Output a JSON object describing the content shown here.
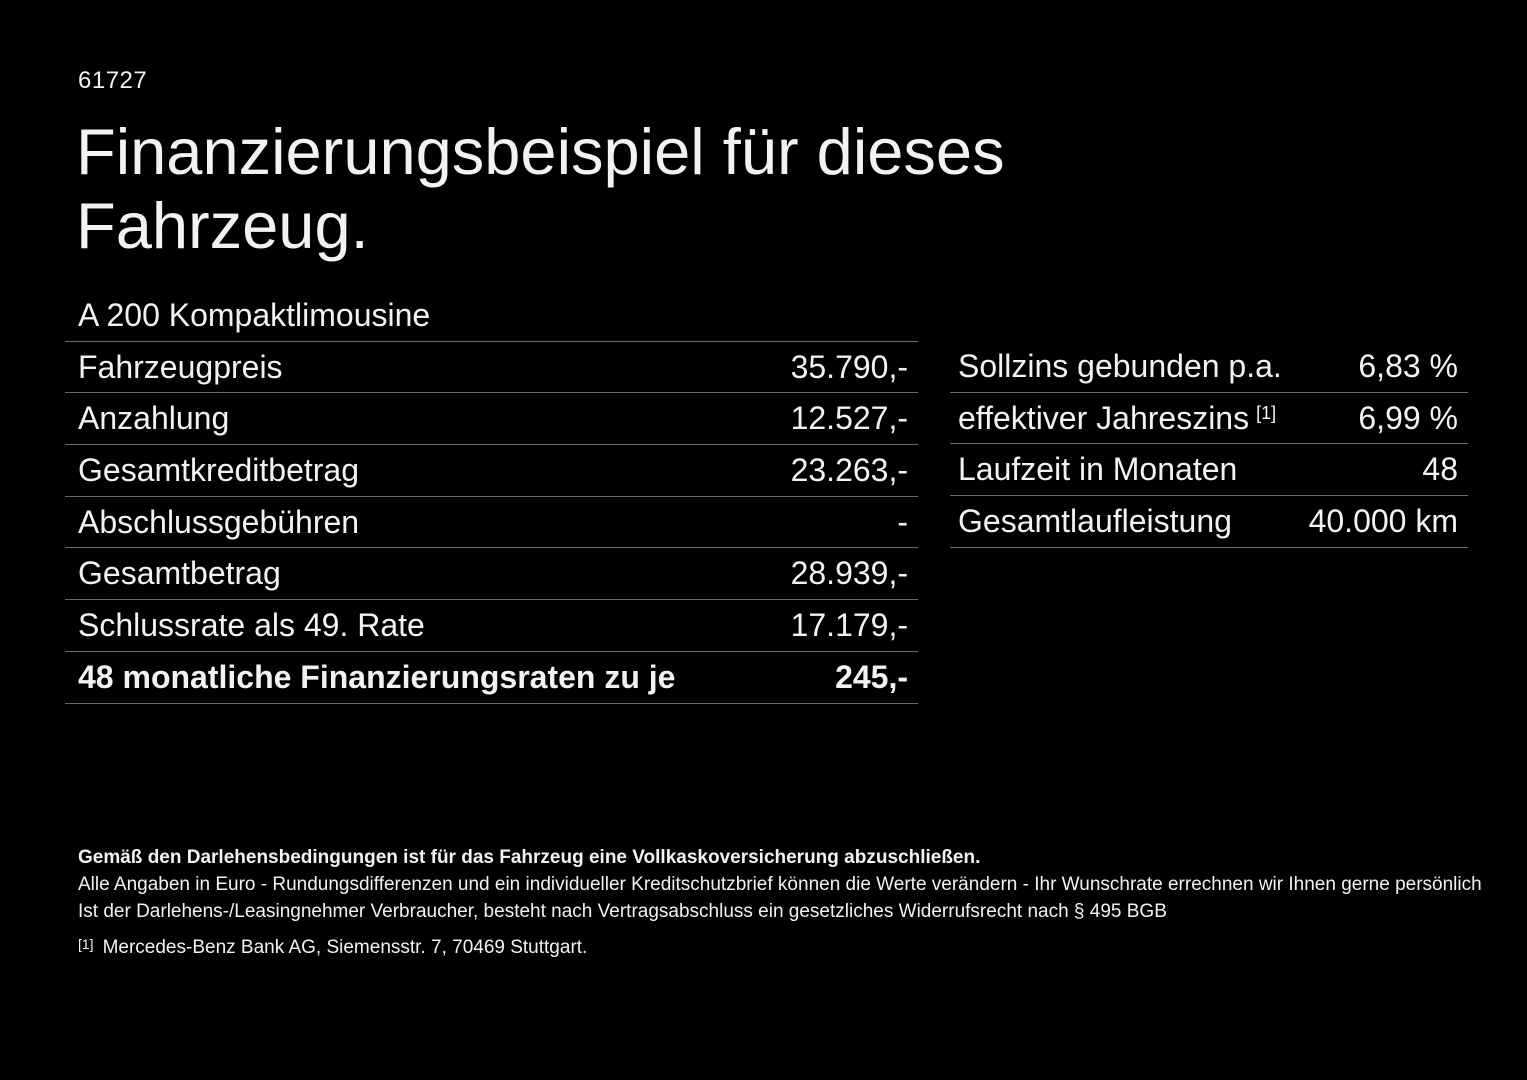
{
  "colors": {
    "background": "#000000",
    "text": "#f2f2f2",
    "divider": "#6b6b6b"
  },
  "header": {
    "document_number": "61727",
    "title_line1": "Finanzierungsbeispiel für dieses",
    "title_line2": "Fahrzeug."
  },
  "vehicle": {
    "model": "A 200 Kompaktlimousine"
  },
  "finance_table": {
    "rows": [
      {
        "label": "Fahrzeugpreis",
        "value": "35.790,-"
      },
      {
        "label": "Anzahlung",
        "value": "12.527,-"
      },
      {
        "label": "Gesamtkreditbetrag",
        "value": "23.263,-"
      },
      {
        "label": "Abschlussgebühren",
        "value": "-"
      },
      {
        "label": "Gesamtbetrag",
        "value": "28.939,-"
      },
      {
        "label": "Schlussrate als 49. Rate",
        "value": "17.179,-"
      },
      {
        "label": "48 monatliche Finanzierungsraten zu je",
        "value": "245,-"
      }
    ]
  },
  "conditions_table": {
    "rows": [
      {
        "label": "Sollzins gebunden p.a.",
        "value": "6,83 %"
      },
      {
        "label": "effektiver Jahreszins",
        "label_sup": "[1]",
        "value": "6,99 %"
      },
      {
        "label": "Laufzeit in Monaten",
        "value": "48"
      },
      {
        "label": "Gesamtlaufleistung",
        "value": "40.000 km"
      }
    ]
  },
  "footer": {
    "line1": "Gemäß den Darlehensbedingungen ist für das Fahrzeug eine Vollkaskoversicherung abzuschließen.",
    "line2": "Alle Angaben in Euro - Rundungsdifferenzen und ein individueller Kreditschutzbrief können die Werte verändern - Ihr Wunschrate errechnen wir Ihnen gerne persönlich",
    "line3": "Ist der Darlehens-/Leasingnehmer Verbraucher, besteht nach Vertragsabschluss ein gesetzliches Widerrufsrecht nach § 495 BGB",
    "footnote_marker": "[1]",
    "footnote_text": "Mercedes-Benz Bank AG, Siemensstr. 7, 70469 Stuttgart."
  }
}
